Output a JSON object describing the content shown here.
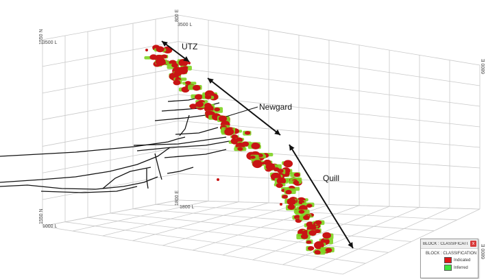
{
  "labels": {
    "utz": "UTZ",
    "newgard": "Newgard",
    "quill": "Quill"
  },
  "axes": {
    "left_top_north": "1550 N",
    "left_top_elev": "3500 L",
    "left_bottom_north": "1550 N",
    "left_bottom_elev": "1000 L",
    "top_center_1": "800 E",
    "top_center_2": "3500 L",
    "mid_center_1": "1800 E",
    "mid_center_2": "1800 L",
    "right_top_east": "6800 E",
    "right_bottom_east": "6800 E"
  },
  "legend": {
    "title": "BLOCK : CLASSIFICATI...",
    "subtitle": "BLOCK : CLASSIFICATION",
    "close": "x",
    "items": [
      {
        "label": "Indicated",
        "color": "#e01818"
      },
      {
        "label": "Inferred",
        "color": "#3ee63e"
      }
    ]
  },
  "colors": {
    "indicated": "#c81414",
    "inferred": "#7ed321",
    "grid": "#c8c8c8",
    "workings": "#111111"
  }
}
